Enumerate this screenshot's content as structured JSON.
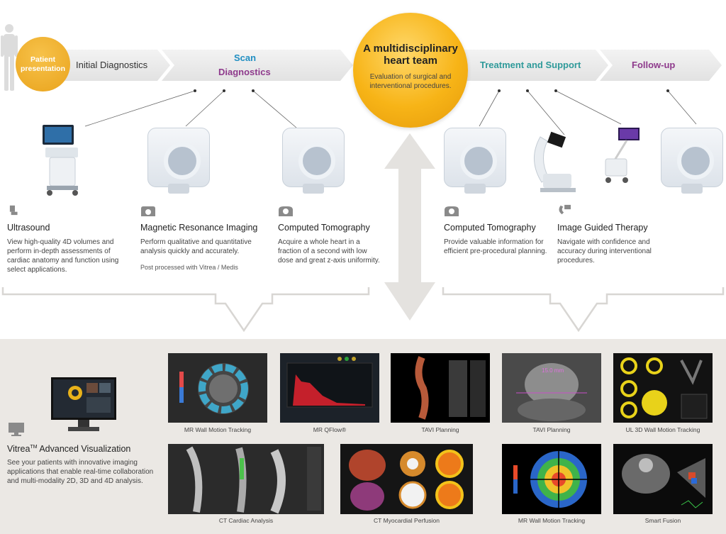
{
  "flow": {
    "patient": "Patient presentation",
    "initial": "Initial Diagnostics",
    "scan": "Scan",
    "diagnostics": "Diagnostics",
    "hub_title": "A multidisciplinary heart team",
    "hub_sub": "Evaluation of surgical and interventional procedures.",
    "treatment": "Treatment and Support",
    "followup": "Follow-up"
  },
  "modalities": [
    {
      "title": "Ultrasound",
      "desc": "View high-quality 4D volumes and perform in-depth assessments of cardiac anatomy and function using select applications.",
      "icon": "ultrasound-icon"
    },
    {
      "title": "Magnetic Resonance Imaging",
      "desc": "Perform qualitative and quantitative analysis quickly and accurately.",
      "note": "Post processed with Vitrea / Medis",
      "icon": "mri-icon"
    },
    {
      "title": "Computed Tomography",
      "desc": "Acquire a whole heart in a fraction of a second with low dose and great z-axis uniformity.",
      "icon": "ct-icon"
    },
    {
      "title": "Computed Tomography",
      "desc": "Provide valuable information for efficient pre-procedural planning.",
      "icon": "ct-icon"
    },
    {
      "title": "Image Guided Therapy",
      "desc": "Navigate with confidence and accuracy during interventional procedures.",
      "icon": "igt-icon"
    }
  ],
  "vitrea": {
    "title_main": "Vitrea",
    "title_tm": "TM",
    "title_rest": " Advanced Visualization",
    "desc": "See your patients with innovative imaging applications that enable real-time collaboration and multi-modality 2D, 3D and 4D analysis."
  },
  "thumbnails": [
    {
      "caption": "MR Wall Motion Tracking"
    },
    {
      "caption": "MR QFlow®"
    },
    {
      "caption": "TAVI Planning"
    },
    {
      "caption": "TAVI Planning",
      "overlay": "15.0 mm"
    },
    {
      "caption": "UL 3D Wall Motion Tracking"
    },
    {
      "caption": "CT Cardiac Analysis"
    },
    {
      "caption": "CT Myocardial Perfusion"
    },
    {
      "caption": "MR Wall Motion Tracking"
    },
    {
      "caption": "Smart Fusion"
    }
  ],
  "colors": {
    "scan": "#1f8ec2",
    "purple": "#8e3a8c",
    "teal": "#2f9a9a",
    "gold": "#f7b417"
  }
}
